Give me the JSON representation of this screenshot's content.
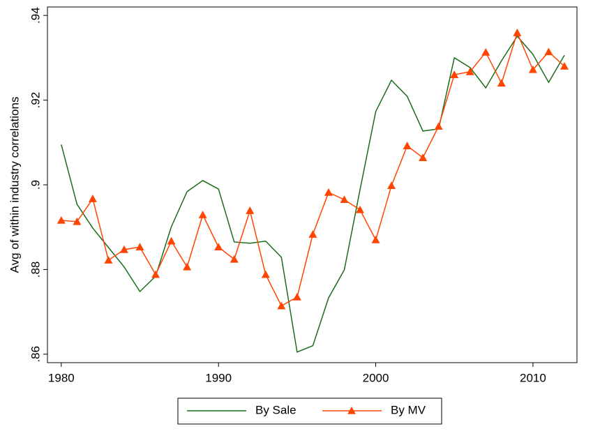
{
  "chart_data": {
    "type": "line",
    "y_label": "Avg of within industry correlations",
    "x": [
      1980,
      1981,
      1982,
      1983,
      1984,
      1985,
      1986,
      1987,
      1988,
      1989,
      1990,
      1991,
      1992,
      1993,
      1994,
      1995,
      1996,
      1997,
      1998,
      1999,
      2000,
      2001,
      2002,
      2003,
      2004,
      2005,
      2006,
      2007,
      2008,
      2009,
      2010,
      2011,
      2012
    ],
    "series": [
      {
        "name": "By Sale",
        "color": "#1a6b1a",
        "marker": "none",
        "values": [
          0.9095,
          0.8954,
          0.8898,
          0.8852,
          0.8806,
          0.8748,
          0.8784,
          0.8901,
          0.8984,
          0.901,
          0.899,
          0.8865,
          0.8862,
          0.8867,
          0.8829,
          0.8605,
          0.862,
          0.8733,
          0.8799,
          0.8988,
          0.9173,
          0.9247,
          0.9209,
          0.9127,
          0.9132,
          0.93,
          0.9277,
          0.9229,
          0.9293,
          0.9351,
          0.9308,
          0.9242,
          0.9306
        ]
      },
      {
        "name": "By MV",
        "color": "#ff4500",
        "marker": "triangle",
        "values": [
          0.8916,
          0.8913,
          0.8967,
          0.8822,
          0.8847,
          0.8853,
          0.8788,
          0.8867,
          0.8806,
          0.8929,
          0.8853,
          0.8824,
          0.8939,
          0.8788,
          0.8714,
          0.8735,
          0.8883,
          0.8982,
          0.8965,
          0.8941,
          0.887,
          0.8998,
          0.9092,
          0.9064,
          0.9138,
          0.926,
          0.9267,
          0.9313,
          0.924,
          0.9359,
          0.9272,
          0.9314,
          0.928
        ]
      }
    ],
    "xlim": [
      1979.12,
      2012.8
    ],
    "ylim": [
      0.858,
      0.942
    ],
    "xticks": [
      1980,
      1990,
      2000,
      2010
    ],
    "yticks": [
      {
        "value": 0.86,
        "label": ".86"
      },
      {
        "value": 0.88,
        "label": ".88"
      },
      {
        "value": 0.9,
        "label": ".9"
      },
      {
        "value": 0.92,
        "label": ".92"
      },
      {
        "value": 0.94,
        "label": ".94"
      }
    ],
    "grid": false,
    "legend_position": "bottom"
  }
}
